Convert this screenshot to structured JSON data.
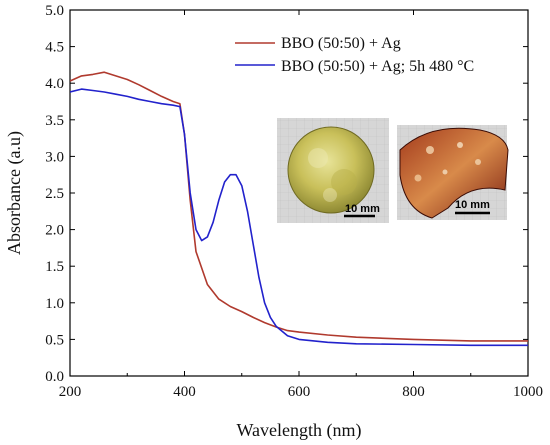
{
  "chart_data": {
    "type": "line",
    "title": "",
    "xlabel": "Wavelength (nm)",
    "ylabel": "Absorbance (a.u)",
    "xlim": [
      200,
      1000
    ],
    "ylim": [
      0.0,
      5.0
    ],
    "xticks": [
      200,
      400,
      600,
      800,
      1000
    ],
    "yticks": [
      0.0,
      0.5,
      1.0,
      1.5,
      2.0,
      2.5,
      3.0,
      3.5,
      4.0,
      4.5,
      5.0
    ],
    "legend_position": "top-right",
    "series": [
      {
        "name": "BBO (50:50) + Ag",
        "color": "#b03a2e",
        "x": [
          200,
          220,
          240,
          260,
          280,
          300,
          320,
          340,
          360,
          380,
          392,
          400,
          410,
          420,
          440,
          460,
          480,
          500,
          520,
          540,
          560,
          580,
          600,
          650,
          700,
          800,
          900,
          1000
        ],
        "y": [
          4.03,
          4.1,
          4.12,
          4.15,
          4.1,
          4.05,
          3.98,
          3.9,
          3.82,
          3.75,
          3.72,
          3.3,
          2.4,
          1.7,
          1.25,
          1.05,
          0.95,
          0.88,
          0.8,
          0.73,
          0.67,
          0.62,
          0.6,
          0.56,
          0.53,
          0.5,
          0.48,
          0.48
        ]
      },
      {
        "name": "BBO (50:50) + Ag; 5h 480 °C",
        "color": "#2222cc",
        "x": [
          200,
          220,
          240,
          260,
          280,
          300,
          320,
          340,
          360,
          380,
          392,
          400,
          410,
          420,
          430,
          440,
          450,
          460,
          470,
          480,
          490,
          500,
          510,
          520,
          530,
          540,
          550,
          560,
          580,
          600,
          650,
          700,
          800,
          900,
          1000
        ],
        "y": [
          3.88,
          3.92,
          3.9,
          3.88,
          3.85,
          3.82,
          3.78,
          3.75,
          3.72,
          3.7,
          3.68,
          3.3,
          2.5,
          2.0,
          1.85,
          1.9,
          2.1,
          2.4,
          2.65,
          2.75,
          2.75,
          2.6,
          2.25,
          1.8,
          1.35,
          1.0,
          0.8,
          0.68,
          0.55,
          0.5,
          0.46,
          0.44,
          0.43,
          0.42,
          0.42
        ]
      }
    ],
    "inset_images": [
      {
        "scale_label": "10 mm"
      },
      {
        "scale_label": "10 mm"
      }
    ]
  }
}
